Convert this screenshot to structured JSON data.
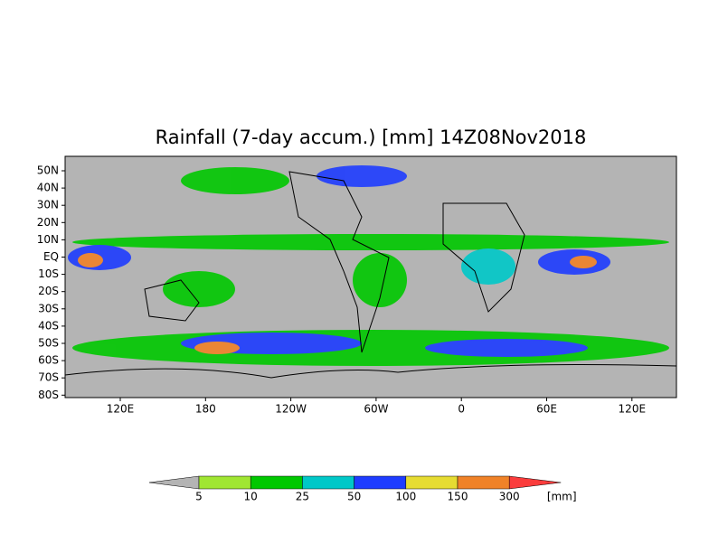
{
  "title": "Rainfall (7-day accum.) [mm] 14Z08Nov2018",
  "lat_labels": [
    "50N",
    "40N",
    "30N",
    "20N",
    "10N",
    "EQ",
    "10S",
    "20S",
    "30S",
    "40S",
    "50S",
    "60S",
    "70S",
    "80S"
  ],
  "lon_labels": [
    "120E",
    "180",
    "120W",
    "60W",
    "0",
    "60E",
    "120E"
  ],
  "legend": {
    "levels": [
      5,
      10,
      25,
      50,
      100,
      150,
      300
    ],
    "colors": [
      "#b4b4b4",
      "#a0e632",
      "#00c800",
      "#00c8c8",
      "#1e3cff",
      "#e6dc32",
      "#f08228",
      "#fa3c3c"
    ],
    "unit": "[mm]"
  }
}
